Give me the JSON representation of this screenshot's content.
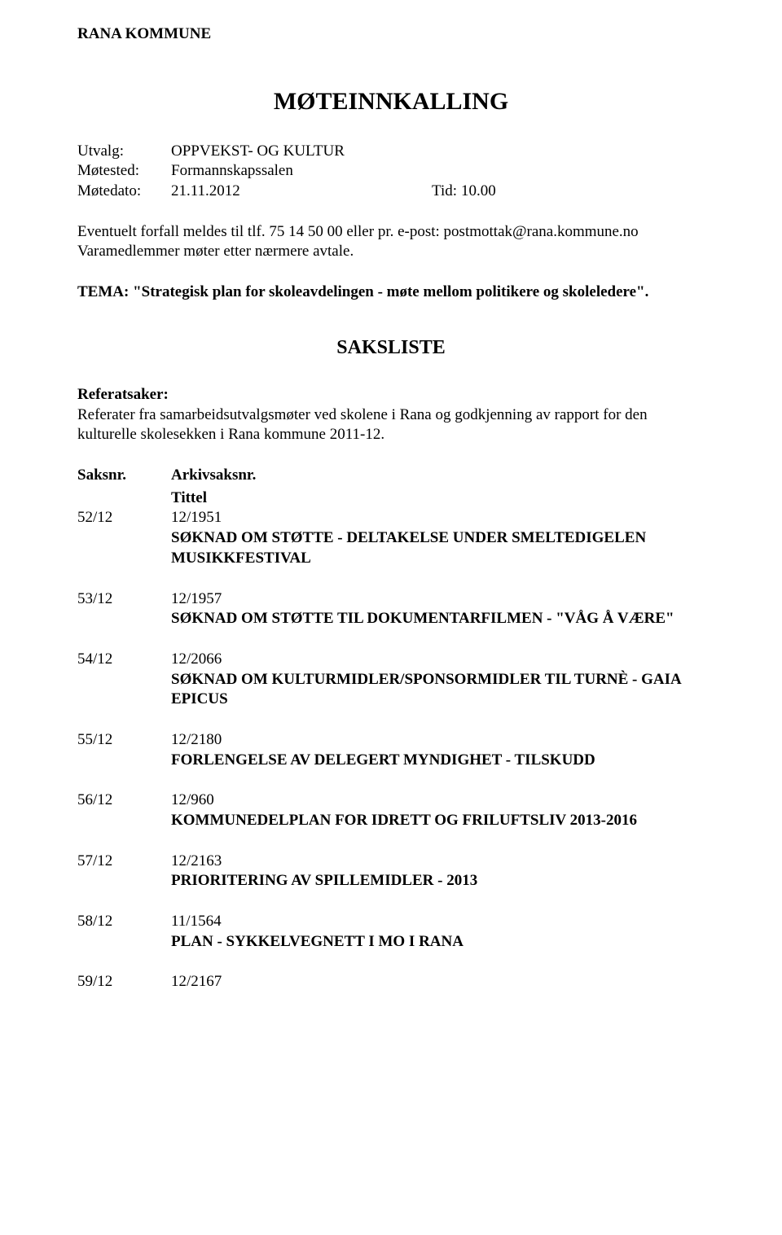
{
  "org_name": "RANA KOMMUNE",
  "main_title": "MØTEINNKALLING",
  "meeting_info": {
    "utvalg_label": "Utvalg:",
    "utvalg_value": "OPPVEKST- OG KULTUR",
    "motested_label": "Møtested:",
    "motested_value": "Formannskapssalen",
    "motedato_label": "Møtedato:",
    "motedato_value": "21.11.2012",
    "tid_label": "Tid:",
    "tid_value": "10.00"
  },
  "notice_line1": "Eventuelt forfall meldes til tlf. 75 14 50 00 eller pr. e-post: postmottak@rana.kommune.no",
  "notice_line2": "Varamedlemmer møter etter nærmere avtale.",
  "tema_label": "TEMA: ",
  "tema_text": "\"Strategisk plan for skoleavdelingen - møte mellom politikere og skoleledere\".",
  "sub_title": "SAKSLISTE",
  "referatsaker_label": "Referatsaker:",
  "referatsaker_text": "Referater fra samarbeidsutvalgsmøter ved skolene i Rana og godkjenning av rapport for den kulturelle skolesekken i Rana kommune 2011-12.",
  "headers": {
    "saksnr": "Saksnr.",
    "arkiv": "Arkivsaksnr.",
    "tittel": "Tittel"
  },
  "cases": [
    {
      "saksnr": "52/12",
      "arkiv": "12/1951",
      "title": "SØKNAD OM STØTTE - DELTAKELSE UNDER SMELTEDIGELEN MUSIKKFESTIVAL"
    },
    {
      "saksnr": "53/12",
      "arkiv": "12/1957",
      "title": "SØKNAD OM STØTTE TIL DOKUMENTARFILMEN - \"VÅG Å VÆRE\""
    },
    {
      "saksnr": "54/12",
      "arkiv": "12/2066",
      "title": "SØKNAD OM KULTURMIDLER/SPONSORMIDLER TIL TURNÈ - GAIA EPICUS"
    },
    {
      "saksnr": "55/12",
      "arkiv": "12/2180",
      "title": "FORLENGELSE AV DELEGERT MYNDIGHET - TILSKUDD"
    },
    {
      "saksnr": "56/12",
      "arkiv": "12/960",
      "title": "KOMMUNEDELPLAN FOR IDRETT OG FRILUFTSLIV  2013-2016"
    },
    {
      "saksnr": "57/12",
      "arkiv": "12/2163",
      "title": "PRIORITERING AV SPILLEMIDLER - 2013"
    },
    {
      "saksnr": "58/12",
      "arkiv": "11/1564",
      "title": "PLAN - SYKKELVEGNETT I MO I RANA"
    },
    {
      "saksnr": "59/12",
      "arkiv": "12/2167",
      "title": ""
    }
  ]
}
